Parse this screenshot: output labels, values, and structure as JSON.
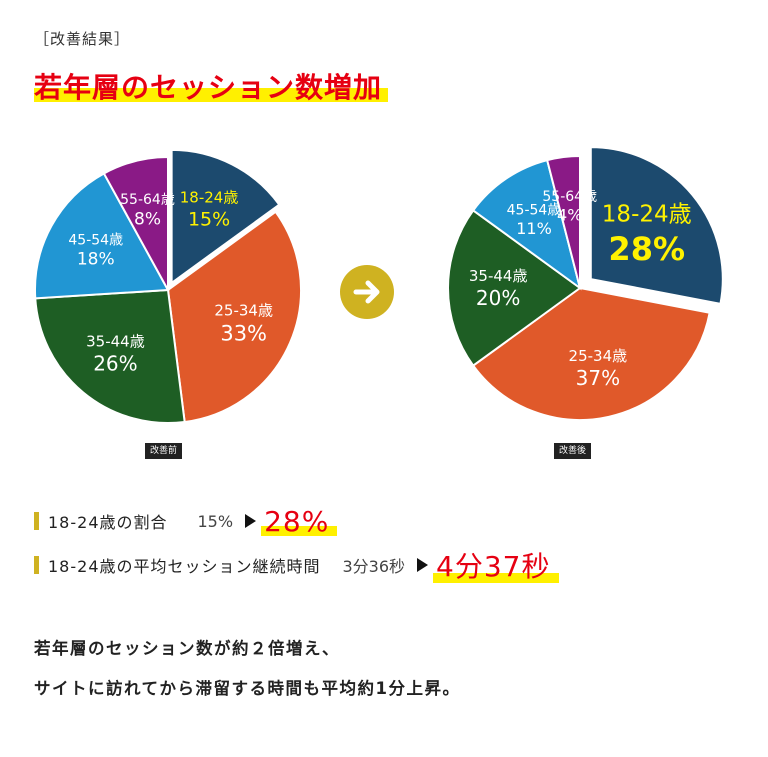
{
  "section_label": "［改善結果］",
  "headline": "若年層のセッション数増加",
  "arrow_icon": "arrow-right-icon",
  "chart_data": [
    {
      "type": "pie",
      "caption": "改善前",
      "categories": [
        "18-24歳",
        "25-34歳",
        "35-44歳",
        "45-54歳",
        "55-64歳"
      ],
      "values": [
        15,
        33,
        26,
        18,
        8
      ],
      "value_labels": [
        "15%",
        "33%",
        "26%",
        "18%",
        "8%"
      ],
      "colors": [
        "#1c4a6e",
        "#e0592a",
        "#1e5e24",
        "#2196d3",
        "#8a1a86"
      ],
      "exploded": "18-24歳"
    },
    {
      "type": "pie",
      "caption": "改善後",
      "categories": [
        "18-24歳",
        "25-34歳",
        "35-44歳",
        "45-54歳",
        "55-64歳"
      ],
      "values": [
        28,
        37,
        20,
        11,
        4
      ],
      "value_labels": [
        "28%",
        "37%",
        "20%",
        "11%",
        "4%"
      ],
      "colors": [
        "#1c4a6e",
        "#e0592a",
        "#1e5e24",
        "#2196d3",
        "#8a1a86"
      ],
      "exploded": "18-24歳"
    }
  ],
  "stats": [
    {
      "label": "18-24歳の割合",
      "before": "15%",
      "after": "28%"
    },
    {
      "label": "18-24歳の平均セッション継続時間",
      "before": "3分36秒",
      "after": "4分37秒"
    }
  ],
  "summary": [
    "若年層のセッション数が約２倍増え、",
    "サイトに訪れてから滞留する時間も平均約1分上昇。"
  ],
  "colors": {
    "accent_red": "#e60012",
    "highlight_yellow": "#fff000",
    "gold": "#cfb221",
    "label_yellow": "#fff200"
  }
}
